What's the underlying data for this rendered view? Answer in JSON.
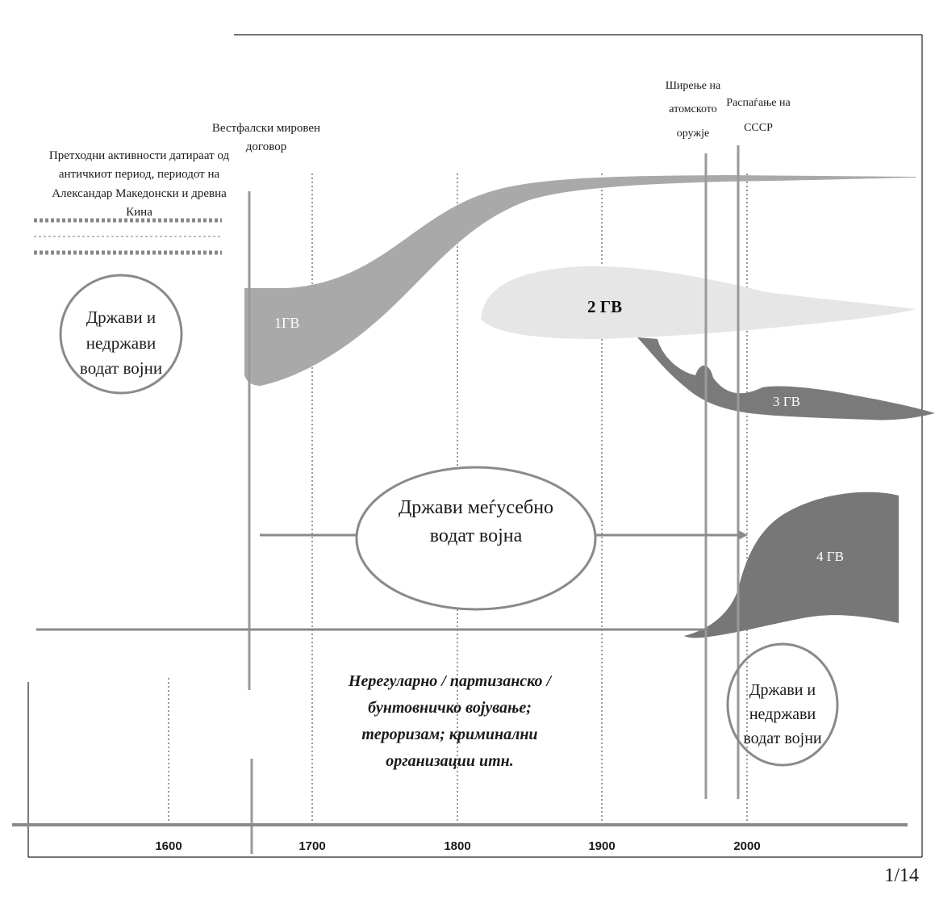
{
  "labels": {
    "prior_activities": "Претходни активности датираат од античкиот период, периодот на Александар Македонски и древна Кина",
    "westphalia": "Вестфалски мировен договор",
    "nuclear": "Ширење на атомското оружје",
    "ussr": "Распаѓање на СССР",
    "oval_left": "Држави и недржави водат војни",
    "oval_center": "Држави меѓусебно водат војна",
    "oval_right": "Држави и недржави водат војни",
    "irregular": "Нерегуларно / партизанско / бунтовничко војување; тероризам; криминални организации итн."
  },
  "eras": {
    "g1": "1ГВ",
    "g2": "2 ГВ",
    "g3": "3 ГВ",
    "g4": "4 ГВ"
  },
  "axis": {
    "ticks": [
      "1600",
      "1700",
      "1800",
      "1900",
      "2000"
    ]
  },
  "page_number": "1/14",
  "colors": {
    "g1_fill": "#a9a9a9",
    "g2_fill": "#e8e8e8",
    "g3_fill": "#7a7a7a",
    "g4_fill": "#777777",
    "oval_stroke": "#888888",
    "line": "#8a8a8a"
  }
}
